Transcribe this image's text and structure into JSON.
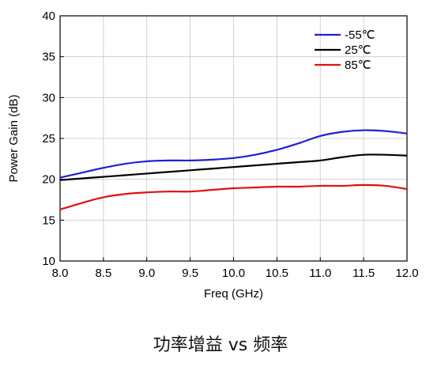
{
  "caption": "功率增益 vs 频率",
  "chart_data": {
    "type": "line",
    "xlabel": "Freq (GHz)",
    "ylabel": "Power Gain (dB)",
    "xlim": [
      8.0,
      12.0
    ],
    "ylim": [
      10,
      40
    ],
    "xticks": [
      "8.0",
      "8.5",
      "9.0",
      "9.5",
      "10.0",
      "10.5",
      "11.0",
      "11.5",
      "12.0"
    ],
    "yticks": [
      "10",
      "15",
      "20",
      "25",
      "30",
      "35",
      "40"
    ],
    "grid": true,
    "legend_position": "top-right",
    "x": [
      8.0,
      8.25,
      8.5,
      8.75,
      9.0,
      9.25,
      9.5,
      9.75,
      10.0,
      10.25,
      10.5,
      10.75,
      11.0,
      11.25,
      11.5,
      11.75,
      12.0
    ],
    "series": [
      {
        "name": "-55℃",
        "color": "#1f1fd6",
        "values": [
          20.2,
          20.8,
          21.4,
          21.9,
          22.2,
          22.3,
          22.3,
          22.4,
          22.6,
          23.0,
          23.6,
          24.4,
          25.3,
          25.8,
          26.0,
          25.9,
          25.6
        ]
      },
      {
        "name": "25℃",
        "color": "#000000",
        "values": [
          19.9,
          20.1,
          20.3,
          20.5,
          20.7,
          20.9,
          21.1,
          21.3,
          21.5,
          21.7,
          21.9,
          22.1,
          22.3,
          22.7,
          23.0,
          23.0,
          22.9
        ]
      },
      {
        "name": "85℃",
        "color": "#e01010",
        "values": [
          16.3,
          17.1,
          17.8,
          18.2,
          18.4,
          18.5,
          18.5,
          18.7,
          18.9,
          19.0,
          19.1,
          19.1,
          19.2,
          19.2,
          19.3,
          19.2,
          18.8
        ]
      }
    ]
  }
}
